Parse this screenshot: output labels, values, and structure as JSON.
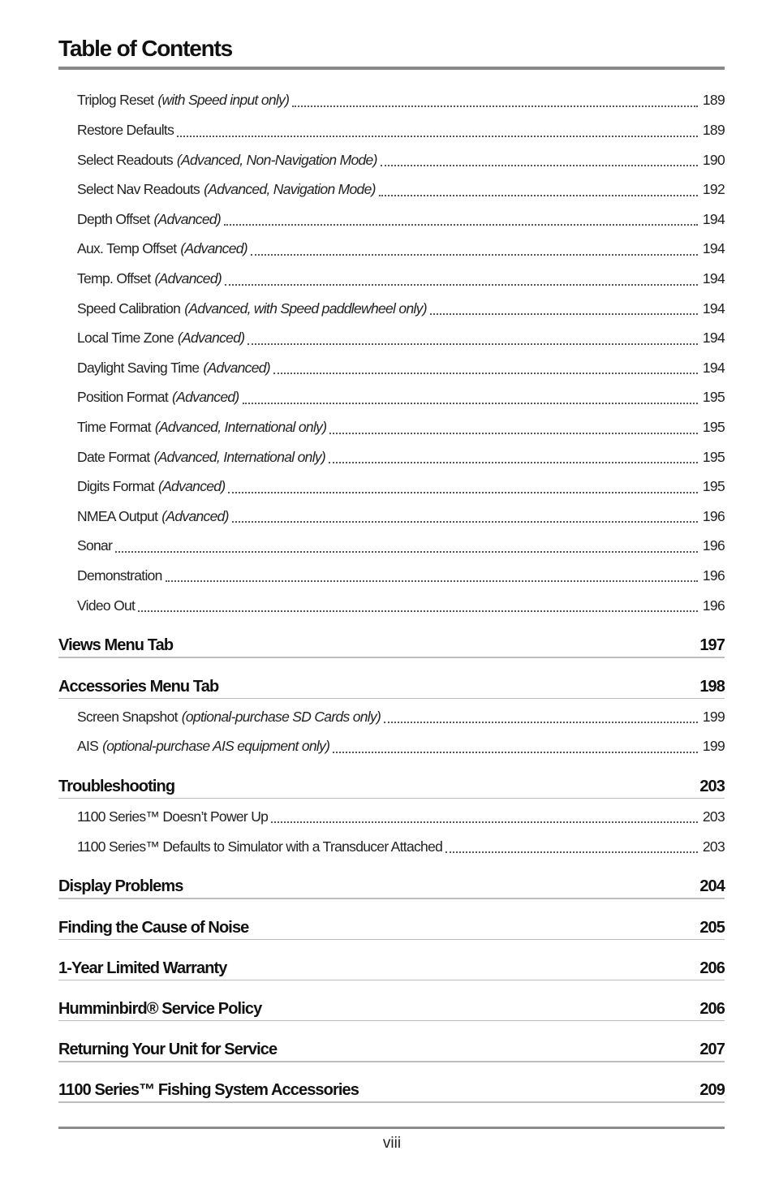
{
  "title": "Table of Contents",
  "entries": [
    {
      "type": "sub",
      "label": "Triplog Reset",
      "note": "(with Speed input only)",
      "page": "189"
    },
    {
      "type": "sub",
      "label": "Restore Defaults",
      "note": "",
      "page": "189"
    },
    {
      "type": "sub",
      "label": "Select Readouts",
      "note": "(Advanced, Non-Navigation Mode)",
      "page": "190"
    },
    {
      "type": "sub",
      "label": "Select Nav Readouts",
      "note": "(Advanced, Navigation Mode)",
      "page": "192"
    },
    {
      "type": "sub",
      "label": "Depth Offset",
      "note": "(Advanced)",
      "page": "194"
    },
    {
      "type": "sub",
      "label": "Aux. Temp Offset",
      "note": "(Advanced)",
      "page": "194"
    },
    {
      "type": "sub",
      "label": "Temp. Offset",
      "note": "(Advanced)",
      "page": "194"
    },
    {
      "type": "sub",
      "label": "Speed Calibration",
      "note": "(Advanced, with Speed paddlewheel only)",
      "page": "194"
    },
    {
      "type": "sub",
      "label": "Local Time Zone",
      "note": "(Advanced)",
      "page": "194"
    },
    {
      "type": "sub",
      "label": "Daylight Saving Time",
      "note": "(Advanced)",
      "page": "194"
    },
    {
      "type": "sub",
      "label": "Position Format",
      "note": "(Advanced)",
      "page": "195"
    },
    {
      "type": "sub",
      "label": "Time Format",
      "note": "(Advanced, International only)",
      "page": "195"
    },
    {
      "type": "sub",
      "label": "Date Format",
      "note": "(Advanced, International only)",
      "page": "195"
    },
    {
      "type": "sub",
      "label": "Digits Format",
      "note": "(Advanced)",
      "page": "195"
    },
    {
      "type": "sub",
      "label": "NMEA Output",
      "note": "(Advanced)",
      "page": "196"
    },
    {
      "type": "sub",
      "label": "Sonar",
      "note": "",
      "page": "196"
    },
    {
      "type": "sub",
      "label": "Demonstration",
      "note": "",
      "page": "196"
    },
    {
      "type": "sub",
      "label": "Video Out",
      "note": "",
      "page": "196"
    },
    {
      "type": "head",
      "label": "Views Menu Tab",
      "page": "197"
    },
    {
      "type": "head",
      "label": "Accessories Menu Tab",
      "page": "198"
    },
    {
      "type": "sub",
      "label": "Screen Snapshot",
      "note": "(optional-purchase SD Cards only)",
      "page": "199"
    },
    {
      "type": "sub",
      "label": "AIS",
      "note": "(optional-purchase AIS equipment only)",
      "page": "199"
    },
    {
      "type": "head",
      "label": "Troubleshooting",
      "page": "203"
    },
    {
      "type": "sub",
      "label": "1100 Series™ Doesn’t Power Up",
      "note": "",
      "page": "203"
    },
    {
      "type": "sub",
      "label": "1100 Series™ Defaults to Simulator with a Transducer Attached",
      "note": "",
      "page": "203"
    },
    {
      "type": "head",
      "label": "Display Problems",
      "page": "204"
    },
    {
      "type": "head",
      "label": "Finding the Cause of Noise",
      "page": "205"
    },
    {
      "type": "head",
      "label": "1-Year Limited Warranty",
      "page": "206"
    },
    {
      "type": "head",
      "label": "Humminbird® Service Policy",
      "page": "206"
    },
    {
      "type": "head",
      "label": "Returning Your Unit for Service",
      "page": "207"
    },
    {
      "type": "head",
      "label": "1100 Series™ Fishing System Accessories",
      "page": "209"
    }
  ],
  "page_number": "viii"
}
